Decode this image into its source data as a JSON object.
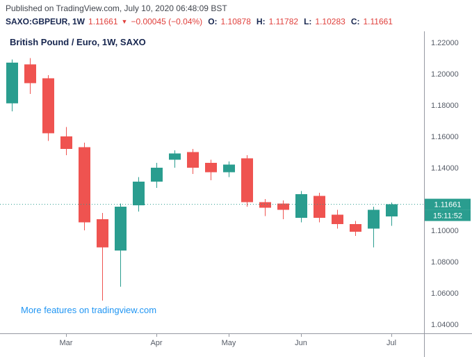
{
  "header": {
    "published": "Published on TradingView.com, July 10, 2020 06:48:09 BST",
    "symbol": "SAXO:GBPEUR, 1W",
    "last_price": "1.11661",
    "direction_icon": "▼",
    "change": "−0.00045 (−0.04%)",
    "ohlc": [
      {
        "label": "O:",
        "value": "1.10878"
      },
      {
        "label": "H:",
        "value": "1.11782"
      },
      {
        "label": "L:",
        "value": "1.10283"
      },
      {
        "label": "C:",
        "value": "1.11661"
      }
    ]
  },
  "footer_link": "More features on tradingview.com",
  "colors": {
    "up": "#2a9d8f",
    "down": "#ef5350",
    "header_red": "#e0403c",
    "axis_text": "#555b66",
    "axis_line": "#9598a1",
    "link_blue": "#2196f3"
  },
  "chart_data": {
    "type": "candlestick",
    "title": "British Pound / Euro, 1W, SAXO",
    "symbol": "SAXO:GBPEUR",
    "interval": "1W",
    "up_color": "#2a9d8f",
    "down_color": "#ef5350",
    "ylim": [
      1.0342,
      1.2271
    ],
    "yticks": [
      1.04,
      1.06,
      1.08,
      1.1,
      1.12,
      1.14,
      1.16,
      1.18,
      1.2,
      1.22
    ],
    "ytick_decimals": 5,
    "month_ticks": [
      {
        "label": "Mar",
        "index": 3
      },
      {
        "label": "Apr",
        "index": 8
      },
      {
        "label": "May",
        "index": 12
      },
      {
        "label": "Jun",
        "index": 16
      },
      {
        "label": "Jul",
        "index": 21
      }
    ],
    "price_line": {
      "value": 1.11661,
      "label": "1.11661",
      "countdown": "15:11:52",
      "color": "#2a9d8f"
    },
    "candles": [
      {
        "o": 1.181,
        "h": 1.209,
        "l": 1.176,
        "c": 1.207
      },
      {
        "o": 1.206,
        "h": 1.21,
        "l": 1.187,
        "c": 1.194
      },
      {
        "o": 1.197,
        "h": 1.199,
        "l": 1.157,
        "c": 1.162
      },
      {
        "o": 1.16,
        "h": 1.166,
        "l": 1.148,
        "c": 1.152
      },
      {
        "o": 1.153,
        "h": 1.156,
        "l": 1.1,
        "c": 1.105
      },
      {
        "o": 1.107,
        "h": 1.111,
        "l": 1.055,
        "c": 1.089
      },
      {
        "o": 1.087,
        "h": 1.117,
        "l": 1.064,
        "c": 1.115
      },
      {
        "o": 1.116,
        "h": 1.134,
        "l": 1.112,
        "c": 1.131
      },
      {
        "o": 1.131,
        "h": 1.143,
        "l": 1.127,
        "c": 1.14
      },
      {
        "o": 1.145,
        "h": 1.151,
        "l": 1.14,
        "c": 1.149
      },
      {
        "o": 1.15,
        "h": 1.152,
        "l": 1.136,
        "c": 1.14
      },
      {
        "o": 1.143,
        "h": 1.145,
        "l": 1.132,
        "c": 1.137
      },
      {
        "o": 1.137,
        "h": 1.144,
        "l": 1.134,
        "c": 1.142
      },
      {
        "o": 1.146,
        "h": 1.148,
        "l": 1.115,
        "c": 1.118
      },
      {
        "o": 1.118,
        "h": 1.12,
        "l": 1.109,
        "c": 1.1145
      },
      {
        "o": 1.117,
        "h": 1.119,
        "l": 1.107,
        "c": 1.113
      },
      {
        "o": 1.108,
        "h": 1.125,
        "l": 1.105,
        "c": 1.123
      },
      {
        "o": 1.122,
        "h": 1.124,
        "l": 1.105,
        "c": 1.108
      },
      {
        "o": 1.11,
        "h": 1.113,
        "l": 1.101,
        "c": 1.104
      },
      {
        "o": 1.104,
        "h": 1.106,
        "l": 1.0965,
        "c": 1.099
      },
      {
        "o": 1.101,
        "h": 1.115,
        "l": 1.089,
        "c": 1.113
      },
      {
        "o": 1.10878,
        "h": 1.11782,
        "l": 1.10283,
        "c": 1.11661
      }
    ]
  }
}
